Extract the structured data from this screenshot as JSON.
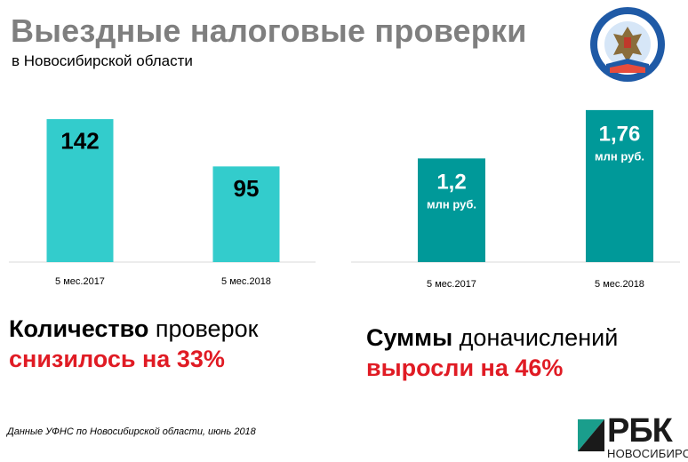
{
  "header": {
    "title": "Выездные налоговые проверки",
    "subtitle": "в Новосибирской области",
    "emblem_text": "ФЕДЕРАЛЬНАЯ НАЛОГОВАЯ СЛУЖБА"
  },
  "chart_data": [
    {
      "type": "bar",
      "categories": [
        "5 мес.2017",
        "5 мес.2018"
      ],
      "values": [
        142,
        95
      ],
      "value_labels": [
        "142",
        "95"
      ],
      "unit_label": "",
      "color": "#33cccc",
      "ylim": [
        0,
        150
      ]
    },
    {
      "type": "bar",
      "categories": [
        "5 мес.2017",
        "5 мес.2018"
      ],
      "values": [
        1.2,
        1.76
      ],
      "value_labels": [
        "1,2",
        "1,76"
      ],
      "unit_label": "млн руб.",
      "color": "#009999",
      "ylim": [
        0,
        1.8
      ]
    }
  ],
  "captions": {
    "left": {
      "bold": "Количество",
      "normal": " проверок",
      "red": "снизилось на 33%"
    },
    "right": {
      "bold": "Суммы",
      "normal": " доначислений",
      "red": "выросли на 46%"
    }
  },
  "source": "Данные УФНС по Новосибирской области, июнь 2018",
  "logo": {
    "name": "РБК",
    "city": "НОВОСИБИРСК",
    "accent": "#1a9e8c"
  },
  "colors": {
    "title": "#7f7f7f",
    "red": "#e01b24"
  }
}
